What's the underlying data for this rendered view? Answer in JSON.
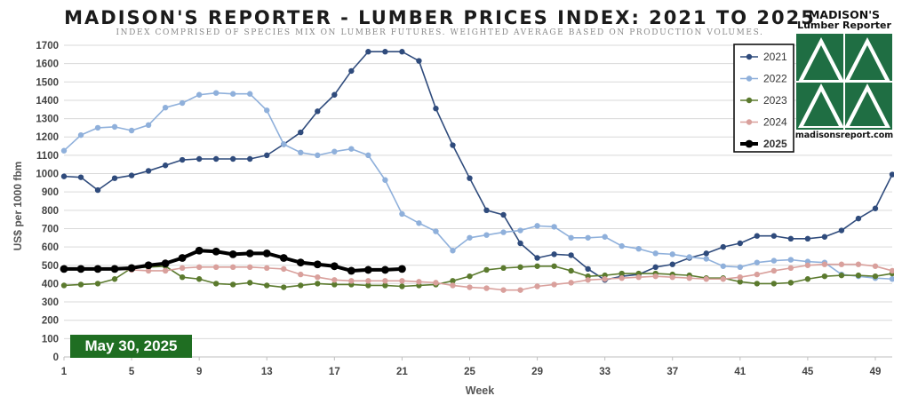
{
  "header": {
    "title": "MADISON'S REPORTER - LUMBER PRICES INDEX: 2021 TO 2025",
    "subtitle": "INDEX COMPRISED OF SPECIES MIX ON LUMBER FUTURES. WEIGHTED AVERAGE BASED ON PRODUCTION VOLUMES."
  },
  "logo": {
    "name": "MADISON'S",
    "subname": "Lumber Reporter",
    "url": "madisonsreport.com",
    "color": "#1f6e43"
  },
  "date_badge": "May 30, 2025",
  "chart_data": {
    "type": "line",
    "title": "MADISON'S REPORTER - LUMBER PRICES INDEX: 2021 TO 2025",
    "xlabel": "Week",
    "ylabel": "US$ per 1000 fbm",
    "xlim": [
      1,
      50
    ],
    "ylim": [
      0,
      1700
    ],
    "x_ticks": [
      1,
      5,
      9,
      13,
      17,
      21,
      25,
      29,
      33,
      37,
      41,
      45,
      49
    ],
    "y_ticks": [
      0,
      100,
      200,
      300,
      400,
      500,
      600,
      700,
      800,
      900,
      1000,
      1100,
      1200,
      1300,
      1400,
      1500,
      1600,
      1700
    ],
    "grid": "horizontal",
    "legend_position": "top-right",
    "series": [
      {
        "name": "2021",
        "color": "#2f4b7c",
        "width": 1.6,
        "marker": 3.2,
        "x": [
          1,
          2,
          3,
          4,
          5,
          6,
          7,
          8,
          9,
          10,
          11,
          12,
          13,
          14,
          15,
          16,
          17,
          18,
          19,
          20,
          21,
          22,
          23,
          24,
          25,
          26,
          27,
          28,
          29,
          30,
          31,
          32,
          33,
          34,
          35,
          36,
          37,
          38,
          39,
          40,
          41,
          42,
          43,
          44,
          45,
          46,
          47,
          48,
          49,
          50
        ],
        "values": [
          985,
          980,
          910,
          975,
          990,
          1015,
          1045,
          1075,
          1080,
          1080,
          1080,
          1080,
          1100,
          1160,
          1225,
          1340,
          1430,
          1560,
          1665,
          1665,
          1665,
          1615,
          1355,
          1155,
          975,
          800,
          775,
          620,
          540,
          560,
          555,
          480,
          420,
          440,
          450,
          490,
          505,
          540,
          565,
          600,
          620,
          660,
          660,
          645,
          645,
          655,
          690,
          755,
          810,
          995
        ]
      },
      {
        "name": "2022",
        "color": "#8fb0db",
        "width": 1.6,
        "marker": 3.2,
        "x": [
          1,
          2,
          3,
          4,
          5,
          6,
          7,
          8,
          9,
          10,
          11,
          12,
          13,
          14,
          15,
          16,
          17,
          18,
          19,
          20,
          21,
          22,
          23,
          24,
          25,
          26,
          27,
          28,
          29,
          30,
          31,
          32,
          33,
          34,
          35,
          36,
          37,
          38,
          39,
          40,
          41,
          42,
          43,
          44,
          45,
          46,
          47,
          48,
          49,
          50
        ],
        "values": [
          1125,
          1210,
          1250,
          1255,
          1235,
          1265,
          1360,
          1385,
          1430,
          1440,
          1435,
          1435,
          1345,
          1160,
          1115,
          1100,
          1120,
          1135,
          1100,
          965,
          780,
          730,
          685,
          580,
          650,
          665,
          680,
          690,
          715,
          710,
          650,
          650,
          655,
          605,
          590,
          565,
          560,
          545,
          535,
          495,
          490,
          515,
          525,
          530,
          520,
          515,
          450,
          440,
          430,
          425
        ]
      },
      {
        "name": "2023",
        "color": "#5b7a2e",
        "width": 1.6,
        "marker": 3.2,
        "x": [
          1,
          2,
          3,
          4,
          5,
          6,
          7,
          8,
          9,
          10,
          11,
          12,
          13,
          14,
          15,
          16,
          17,
          18,
          19,
          20,
          21,
          22,
          23,
          24,
          25,
          26,
          27,
          28,
          29,
          30,
          31,
          32,
          33,
          34,
          35,
          36,
          37,
          38,
          39,
          40,
          41,
          42,
          43,
          44,
          45,
          46,
          47,
          48,
          49,
          50
        ],
        "values": [
          390,
          395,
          400,
          425,
          485,
          490,
          495,
          435,
          425,
          400,
          395,
          405,
          390,
          380,
          390,
          400,
          395,
          395,
          390,
          390,
          385,
          390,
          395,
          415,
          440,
          475,
          485,
          490,
          495,
          495,
          470,
          440,
          445,
          455,
          455,
          455,
          450,
          445,
          430,
          430,
          410,
          400,
          400,
          405,
          425,
          440,
          445,
          445,
          440,
          455
        ]
      },
      {
        "name": "2024",
        "color": "#d9a09c",
        "width": 1.6,
        "marker": 3.2,
        "x": [
          1,
          2,
          3,
          4,
          5,
          6,
          7,
          8,
          9,
          10,
          11,
          12,
          13,
          14,
          15,
          16,
          17,
          18,
          19,
          20,
          21,
          22,
          23,
          24,
          25,
          26,
          27,
          28,
          29,
          30,
          31,
          32,
          33,
          34,
          35,
          36,
          37,
          38,
          39,
          40,
          41,
          42,
          43,
          44,
          45,
          46,
          47,
          48,
          49,
          50
        ],
        "values": [
          480,
          480,
          480,
          480,
          475,
          470,
          470,
          485,
          490,
          490,
          490,
          490,
          485,
          480,
          450,
          435,
          420,
          415,
          415,
          415,
          415,
          410,
          405,
          390,
          380,
          375,
          365,
          365,
          385,
          395,
          405,
          420,
          425,
          430,
          435,
          440,
          435,
          430,
          425,
          425,
          435,
          450,
          470,
          485,
          500,
          505,
          505,
          505,
          495,
          470
        ]
      },
      {
        "name": "2025",
        "color": "#000000",
        "width": 4,
        "marker": 4.4,
        "x": [
          1,
          2,
          3,
          4,
          5,
          6,
          7,
          8,
          9,
          10,
          11,
          12,
          13,
          14,
          15,
          16,
          17,
          18,
          19,
          20,
          21
        ],
        "values": [
          480,
          480,
          480,
          480,
          485,
          500,
          510,
          540,
          580,
          575,
          560,
          565,
          565,
          540,
          515,
          505,
          495,
          470,
          475,
          475,
          480
        ]
      }
    ]
  }
}
